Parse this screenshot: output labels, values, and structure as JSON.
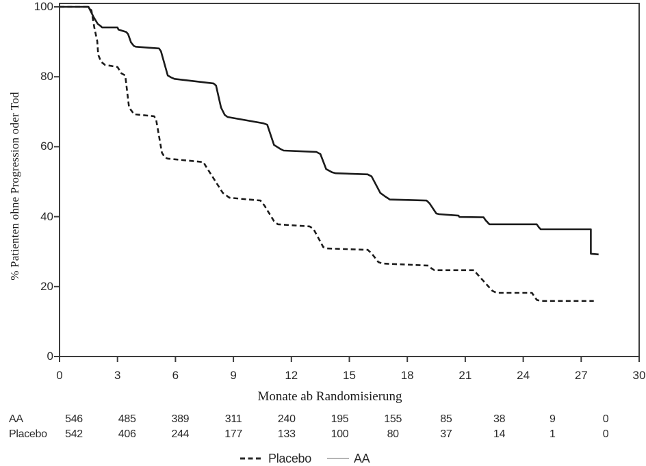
{
  "chart_data": {
    "type": "line",
    "subtype": "kaplan-meier-step",
    "title": "",
    "xlabel": "Monate ab Randomisierung",
    "ylabel": "% Patienten ohne Progression oder Tod",
    "xlim": [
      0,
      30
    ],
    "ylim": [
      0,
      100
    ],
    "x_ticks": [
      0,
      3,
      6,
      9,
      12,
      15,
      18,
      21,
      24,
      27,
      30
    ],
    "y_ticks": [
      0,
      20,
      40,
      60,
      80,
      100
    ],
    "grid": false,
    "legend_position": "bottom-center",
    "series": [
      {
        "name": "Placebo",
        "line_style": "dashed",
        "color": "#1b1b1b",
        "points": [
          [
            0,
            100
          ],
          [
            1.45,
            100
          ],
          [
            1.65,
            99
          ],
          [
            1.8,
            94.1
          ],
          [
            1.95,
            90.2
          ],
          [
            2.0,
            86.3
          ],
          [
            2.15,
            84.3
          ],
          [
            2.35,
            83.4
          ],
          [
            3.0,
            82.8
          ],
          [
            3.2,
            81.0
          ],
          [
            3.4,
            80.4
          ],
          [
            3.6,
            71.2
          ],
          [
            3.75,
            70.1
          ],
          [
            3.85,
            69.3
          ],
          [
            4.9,
            68.7
          ],
          [
            5.0,
            67.7
          ],
          [
            5.3,
            58.3
          ],
          [
            5.45,
            56.9
          ],
          [
            5.6,
            56.6
          ],
          [
            7.45,
            55.6
          ],
          [
            7.55,
            54.6
          ],
          [
            8.45,
            46.8
          ],
          [
            8.7,
            45.8
          ],
          [
            8.8,
            45.4
          ],
          [
            10.4,
            44.6
          ],
          [
            10.6,
            43.2
          ],
          [
            11.1,
            38.7
          ],
          [
            11.3,
            37.8
          ],
          [
            12.95,
            37.2
          ],
          [
            13.15,
            36.4
          ],
          [
            13.65,
            31.3
          ],
          [
            13.85,
            30.9
          ],
          [
            15.95,
            30.5
          ],
          [
            16.15,
            29.5
          ],
          [
            16.5,
            27.0
          ],
          [
            16.7,
            26.6
          ],
          [
            19.1,
            26.0
          ],
          [
            19.25,
            25.2
          ],
          [
            19.4,
            24.7
          ],
          [
            21.45,
            24.7
          ],
          [
            21.6,
            23.7
          ],
          [
            22.4,
            18.8
          ],
          [
            22.55,
            18.4
          ],
          [
            22.65,
            18.2
          ],
          [
            24.45,
            18.2
          ],
          [
            24.55,
            17.4
          ],
          [
            24.7,
            16.2
          ],
          [
            24.9,
            15.9
          ],
          [
            27.65,
            15.9
          ]
        ]
      },
      {
        "name": "AA",
        "line_style": "solid",
        "color": "#1b1b1b",
        "points": [
          [
            0,
            100
          ],
          [
            1.5,
            100
          ],
          [
            1.77,
            97
          ],
          [
            1.98,
            95.1
          ],
          [
            2.13,
            94.5
          ],
          [
            2.2,
            94.1
          ],
          [
            3.0,
            94.1
          ],
          [
            3.05,
            93.5
          ],
          [
            3.45,
            92.8
          ],
          [
            3.55,
            92.2
          ],
          [
            3.7,
            89.8
          ],
          [
            3.85,
            88.8
          ],
          [
            3.95,
            88.6
          ],
          [
            5.15,
            88.1
          ],
          [
            5.25,
            87.3
          ],
          [
            5.6,
            80.4
          ],
          [
            5.78,
            79.8
          ],
          [
            5.95,
            79.4
          ],
          [
            7.97,
            78.1
          ],
          [
            8.1,
            77.5
          ],
          [
            8.36,
            71.2
          ],
          [
            8.55,
            69.1
          ],
          [
            8.7,
            68.5
          ],
          [
            10.55,
            66.7
          ],
          [
            10.75,
            66.3
          ],
          [
            11.1,
            60.5
          ],
          [
            11.45,
            59.3
          ],
          [
            11.6,
            58.9
          ],
          [
            13.3,
            58.5
          ],
          [
            13.5,
            57.9
          ],
          [
            13.8,
            53.6
          ],
          [
            14.1,
            52.7
          ],
          [
            14.3,
            52.4
          ],
          [
            15.95,
            52.1
          ],
          [
            16.15,
            51.5
          ],
          [
            16.6,
            46.8
          ],
          [
            16.85,
            45.8
          ],
          [
            17.1,
            44.9
          ],
          [
            19.0,
            44.6
          ],
          [
            19.15,
            43.8
          ],
          [
            19.5,
            40.9
          ],
          [
            19.65,
            40.7
          ],
          [
            20.65,
            40.3
          ],
          [
            20.7,
            39.9
          ],
          [
            21.95,
            39.8
          ],
          [
            22.05,
            39.0
          ],
          [
            22.25,
            37.8
          ],
          [
            24.7,
            37.8
          ],
          [
            24.8,
            37.0
          ],
          [
            24.9,
            36.4
          ],
          [
            27.5,
            36.4
          ],
          [
            27.5,
            29.4
          ],
          [
            27.9,
            29.2
          ]
        ]
      }
    ]
  },
  "at_risk_table": {
    "rows": [
      {
        "label": "AA",
        "counts": [
          "546",
          "485",
          "389",
          "311",
          "240",
          "195",
          "155",
          "85",
          "38",
          "9",
          "0"
        ]
      },
      {
        "label": "Placebo",
        "counts": [
          "542",
          "406",
          "244",
          "177",
          "133",
          "100",
          "80",
          "37",
          "14",
          "1",
          "0"
        ]
      }
    ]
  },
  "legend": {
    "items": [
      {
        "label": "Placebo",
        "line_style": "dashed",
        "color": "#2a2a2a"
      },
      {
        "label": "AA",
        "line_style": "solid",
        "color": "#b5b5b5"
      }
    ]
  },
  "colors": {
    "axis": "#3d3d3d",
    "curve": "#1b1b1b",
    "legend_aa_line": "#b5b5b5",
    "text": "#2a2a2a",
    "background": "#ffffff"
  }
}
